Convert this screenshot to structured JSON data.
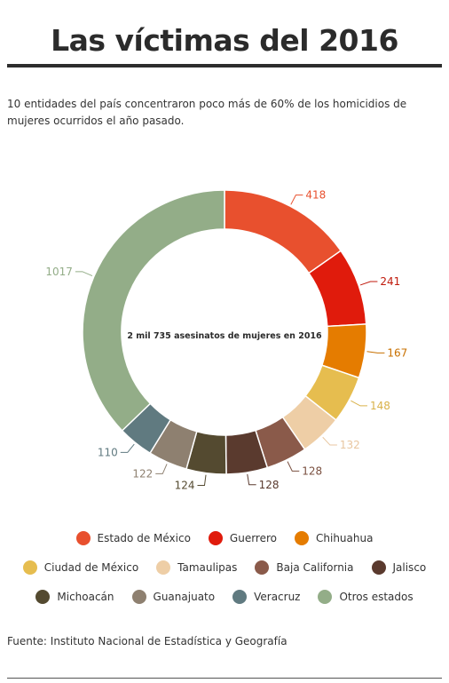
{
  "title": "Las víctimas del 2016",
  "subtitle": "10 entidades del país concentraron poco más de 60% de los homicidios de mujeres ocurridos el año pasado.",
  "source": "Fuente: Instituto Nacional de Estadística y Geografía",
  "chart_data": {
    "type": "pie",
    "center_label": "2 mil 735 asesinatos de mujeres en 2016",
    "categories": [
      "Estado de México",
      "Guerrero",
      "Chihuahua",
      "Ciudad de México",
      "Tamaulipas",
      "Baja California",
      "Jalisco",
      "Michoacán",
      "Guanajuato",
      "Veracruz",
      "Otros estados"
    ],
    "values": [
      418,
      241,
      167,
      148,
      132,
      128,
      128,
      124,
      122,
      110,
      1017
    ],
    "colors": [
      "#e8502e",
      "#e01b0c",
      "#e57c00",
      "#e6bd4f",
      "#eecea6",
      "#8a5a4a",
      "#5a3a2e",
      "#544a30",
      "#8e8070",
      "#607a80",
      "#93ad88"
    ],
    "label_colors": [
      "#e8502e",
      "#c01a0c",
      "#c87000",
      "#d9b24a",
      "#e8c6a0",
      "#7a5040",
      "#5a3a2e",
      "#544a30",
      "#8e8070",
      "#607a80",
      "#93ad88"
    ],
    "legend_position": "bottom"
  }
}
